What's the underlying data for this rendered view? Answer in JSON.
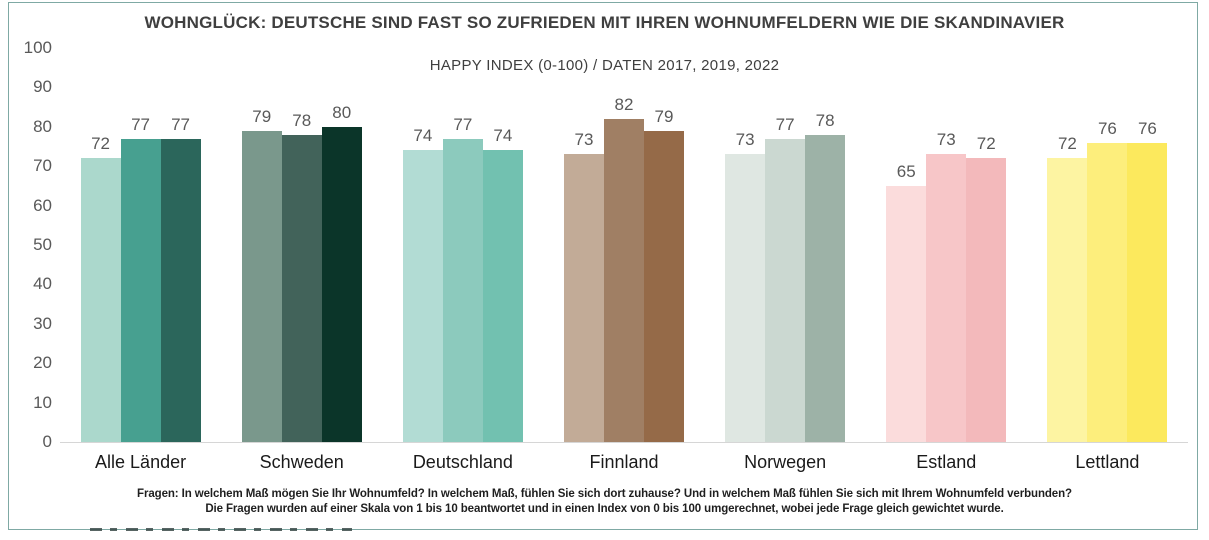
{
  "frame": {
    "border_color": "#7FA9A4"
  },
  "header": {
    "title": "WOHNGLÜCK: DEUTSCHE SIND FAST SO ZUFRIEDEN MIT IHREN WOHNUMFELDERN WIE DIE SKANDINAVIER",
    "subtitle": "HAPPY INDEX (0-100) / DATEN 2017, 2019, 2022"
  },
  "footnotes": {
    "line1": "Fragen: In welchem Maß mögen Sie Ihr Wohnumfeld? In welchem Maß, fühlen Sie sich dort zuhause? Und in welchem Maß fühlen Sie sich mit Ihrem Wohnumfeld verbunden?",
    "line2": "Die Fragen wurden auf einer Skala von 1 bis 10 beantwortet und in einen Index von 0 bis 100 umgerechnet, wobei jede Frage gleich gewichtet wurde."
  },
  "chart_data": {
    "type": "bar",
    "title": "WOHNGLÜCK: DEUTSCHE SIND FAST SO ZUFRIEDEN MIT IHREN WOHNUMFELDERN WIE DIE SKANDINAVIER",
    "subtitle": "HAPPY INDEX (0-100) / DATEN 2017, 2019, 2022",
    "categories": [
      "Alle Länder",
      "Schweden",
      "Deutschland",
      "Finnland",
      "Norwegen",
      "Estland",
      "Lettland"
    ],
    "series": [
      {
        "name": "2017",
        "values": [
          72,
          79,
          74,
          73,
          73,
          65,
          72
        ]
      },
      {
        "name": "2019",
        "values": [
          77,
          78,
          77,
          82,
          77,
          73,
          76
        ]
      },
      {
        "name": "2022",
        "values": [
          77,
          80,
          74,
          79,
          78,
          72,
          76
        ]
      }
    ],
    "ylim": [
      0,
      100
    ],
    "yticks": [
      0,
      10,
      20,
      30,
      40,
      50,
      60,
      70,
      80,
      90,
      100
    ],
    "grid": false,
    "legend": "none",
    "value_labels": true,
    "group_colors": [
      [
        "#ABD8CC",
        "#47A090",
        "#2B665B"
      ],
      [
        "#7A988C",
        "#42635A",
        "#0B3529"
      ],
      [
        "#B2DCD4",
        "#8CCABD",
        "#72C1B0"
      ],
      [
        "#C2AB97",
        "#A07F64",
        "#956A48"
      ],
      [
        "#DFE7E2",
        "#CBD8D1",
        "#9DB2A7"
      ],
      [
        "#FBDCDC",
        "#F7C6C8",
        "#F3B9BB"
      ],
      [
        "#FDF4A2",
        "#FDEE7C",
        "#FCE95D"
      ]
    ],
    "axis_text_color": "#595959",
    "category_text_color": "#1A1A1A",
    "baseline_color": "#D6D6D6"
  }
}
